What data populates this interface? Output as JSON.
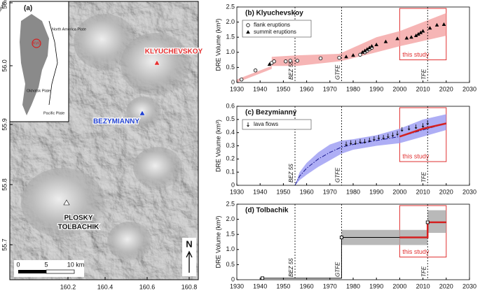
{
  "map": {
    "panel_label": "(a)",
    "lat_ticks": [
      "56.1",
      "56.0",
      "55.9",
      "55.8",
      "55.7"
    ],
    "lon_ticks": [
      "160.2",
      "160.4",
      "160.6",
      "160.8"
    ],
    "volcanoes": [
      {
        "name": "KLYUCHEVSKOY"
      },
      {
        "name": "BEZYMIANNY"
      },
      {
        "name_lines": [
          "PLOSKY",
          "TOLBACHIK"
        ]
      }
    ],
    "inset": {
      "labels": [
        "Kamchatka Peninsula",
        "North America Plate",
        "KVG",
        "Okhotsk Plate",
        "Pacific Plate"
      ]
    },
    "scale": [
      "0",
      "5",
      "10 km"
    ],
    "north": "N"
  },
  "chart_data": [
    {
      "type": "line",
      "title": "(b) Klyuchevskoy",
      "ylabel": "DRE Volume (km³)",
      "xlim": [
        1930,
        2030
      ],
      "xticks": [
        1930,
        1940,
        1950,
        1960,
        1970,
        1980,
        1990,
        2000,
        2010,
        2020,
        2030
      ],
      "ylim": [
        0,
        2.5
      ],
      "yticks": [
        0,
        {
          "value": 0.5,
          "label": "0.5"
        },
        {
          "value": 1,
          "label": "1.0"
        },
        {
          "value": 1.5,
          "label": "1.5"
        },
        {
          "value": 2,
          "label": "2.0"
        },
        {
          "value": 2.5,
          "label": "2.5"
        }
      ],
      "bands": [
        {
          "color": "#f4a3a3",
          "x": [
            1930,
            1945,
            1945,
            1956,
            1974,
            1977,
            1990,
            2000,
            2020
          ],
          "lower": [
            0,
            0.45,
            0.55,
            0.55,
            0.7,
            0.75,
            1.0,
            1.2,
            1.55
          ],
          "upper": [
            0.1,
            0.55,
            0.85,
            0.9,
            0.95,
            1.05,
            1.5,
            1.7,
            2.3
          ]
        }
      ],
      "series": [
        {
          "name": "flank eruptions",
          "marker": "circle",
          "color": "#000000",
          "x": [
            1932,
            1938,
            1945,
            1946,
            1951,
            1953,
            1956,
            1966,
            1974,
            1983,
            1985,
            1986,
            1987,
            1988
          ],
          "values": [
            0.1,
            0.4,
            0.65,
            0.7,
            0.7,
            0.72,
            0.72,
            0.8,
            0.82,
            0.92,
            1.0,
            1.05,
            1.1,
            1.15
          ]
        },
        {
          "name": "summit eruptions",
          "marker": "triangle",
          "color": "#000000",
          "x": [
            1944,
            1977,
            1980,
            1984,
            1985,
            1986,
            1987,
            1988,
            1990,
            1994,
            1999,
            2003,
            2005,
            2007,
            2008,
            2009,
            2010,
            2013,
            2016,
            2019
          ],
          "values": [
            0.6,
            0.85,
            0.9,
            1.0,
            1.05,
            1.1,
            1.15,
            1.2,
            1.25,
            1.35,
            1.45,
            1.47,
            1.5,
            1.55,
            1.6,
            1.65,
            1.7,
            1.8,
            1.9,
            1.92
          ]
        }
      ],
      "vlines": [
        {
          "x": 1955,
          "label": "BEZ 55"
        },
        {
          "x": 1975,
          "label": "GTFE"
        },
        {
          "x": 2012,
          "label": "TFE"
        }
      ],
      "highlight": {
        "xlim": [
          2000,
          2020
        ],
        "label": "this study",
        "color": "#e03030"
      }
    },
    {
      "type": "line",
      "title": "(c) Bezymianny",
      "ylabel": "DRE Volume (km³)",
      "xlim": [
        1930,
        2030
      ],
      "xticks": [
        1930,
        1940,
        1950,
        1960,
        1970,
        1980,
        1990,
        2000,
        2010,
        2020,
        2030
      ],
      "ylim": [
        0,
        0.6
      ],
      "yticks": [
        0,
        0.1,
        0.2,
        0.3,
        0.4,
        0.5,
        0.6
      ],
      "bands": [
        {
          "color": "#9a9af2",
          "x": [
            1955,
            1957,
            1960,
            1965,
            1970,
            1975,
            1980,
            1990,
            2000,
            2010,
            2020
          ],
          "lower": [
            0,
            0.04,
            0.08,
            0.14,
            0.19,
            0.24,
            0.27,
            0.3,
            0.32,
            0.37,
            0.42
          ],
          "upper": [
            0,
            0.1,
            0.17,
            0.25,
            0.31,
            0.34,
            0.35,
            0.38,
            0.43,
            0.5,
            0.54
          ]
        }
      ],
      "series": [
        {
          "linestyle": "dashdot",
          "color": "#1a1a90",
          "x": [
            1955,
            1957,
            1960,
            1965,
            1970,
            1975,
            1980,
            1990,
            2000,
            2010,
            2020
          ],
          "values": [
            0,
            0.07,
            0.13,
            0.2,
            0.25,
            0.29,
            0.31,
            0.34,
            0.37,
            0.42,
            0.47
          ]
        },
        {
          "linestyle": "solid",
          "color": "#d42020",
          "x": [
            2000,
            2005,
            2010,
            2015,
            2020
          ],
          "values": [
            0.37,
            0.4,
            0.43,
            0.45,
            0.47
          ]
        },
        {
          "name": "lava flows",
          "marker": "arrow",
          "color": "#000000",
          "x": [
            1977,
            1979,
            1981,
            1983,
            1985,
            1987,
            1989,
            1991,
            1993,
            1995,
            1997,
            1999,
            2001,
            2004,
            2007,
            2010,
            2012
          ],
          "values": [
            0.3,
            0.31,
            0.31,
            0.32,
            0.32,
            0.33,
            0.34,
            0.35,
            0.35,
            0.36,
            0.37,
            0.38,
            0.41,
            0.42,
            0.43,
            0.44,
            0.46
          ]
        }
      ],
      "vlines": [
        {
          "x": 1955,
          "label": "BEZ 55"
        },
        {
          "x": 1975,
          "label": "GTFE"
        },
        {
          "x": 2012,
          "label": "TFE"
        }
      ],
      "highlight": {
        "xlim": [
          2000,
          2020
        ],
        "label": "this study",
        "color": "#e03030"
      }
    },
    {
      "type": "line",
      "title": "(d) Tolbachik",
      "ylabel": "DRE Volume (km³)",
      "xlim": [
        1930,
        2030
      ],
      "xticks": [
        1930,
        1940,
        1950,
        1960,
        1970,
        1980,
        1990,
        2000,
        2010,
        2020,
        2030
      ],
      "ylim": [
        0,
        2.5
      ],
      "yticks": [
        0,
        {
          "value": 0.5,
          "label": "0.5"
        },
        {
          "value": 1,
          "label": "1.0"
        },
        {
          "value": 1.5,
          "label": "1.5"
        },
        {
          "value": 2,
          "label": "2.0"
        },
        {
          "value": 2.5,
          "label": "2.5"
        }
      ],
      "bands": [
        {
          "color": "#a8a8a8",
          "x": [
            1975,
            2012
          ],
          "lower": [
            1.15,
            1.15
          ],
          "upper": [
            1.65,
            1.65
          ]
        },
        {
          "color": "#a8a8a8",
          "x": [
            2012,
            2020
          ],
          "lower": [
            1.55,
            1.55
          ],
          "upper": [
            2.3,
            2.3
          ]
        }
      ],
      "series": [
        {
          "linestyle": "solid",
          "color": "#000000",
          "x": [
            1941,
            1975,
            1975,
            2012,
            2012,
            2020
          ],
          "values": [
            0.05,
            0.05,
            1.4,
            1.4,
            1.9,
            1.9
          ]
        },
        {
          "linestyle": "solid",
          "color": "#d42020",
          "x": [
            2000,
            2012,
            2012,
            2020
          ],
          "values": [
            1.4,
            1.4,
            1.9,
            1.9
          ]
        },
        {
          "marker": "square",
          "color": "#000000",
          "x": [
            1941,
            1975,
            2012
          ],
          "values": [
            0.05,
            1.4,
            1.9
          ]
        }
      ],
      "vlines": [
        {
          "x": 1955,
          "label": "BEZ 55"
        },
        {
          "x": 1975,
          "label": "GTFE"
        },
        {
          "x": 2012,
          "label": "TFE"
        }
      ],
      "highlight": {
        "xlim": [
          2000,
          2020
        ],
        "label": "this study",
        "color": "#e03030"
      }
    }
  ]
}
